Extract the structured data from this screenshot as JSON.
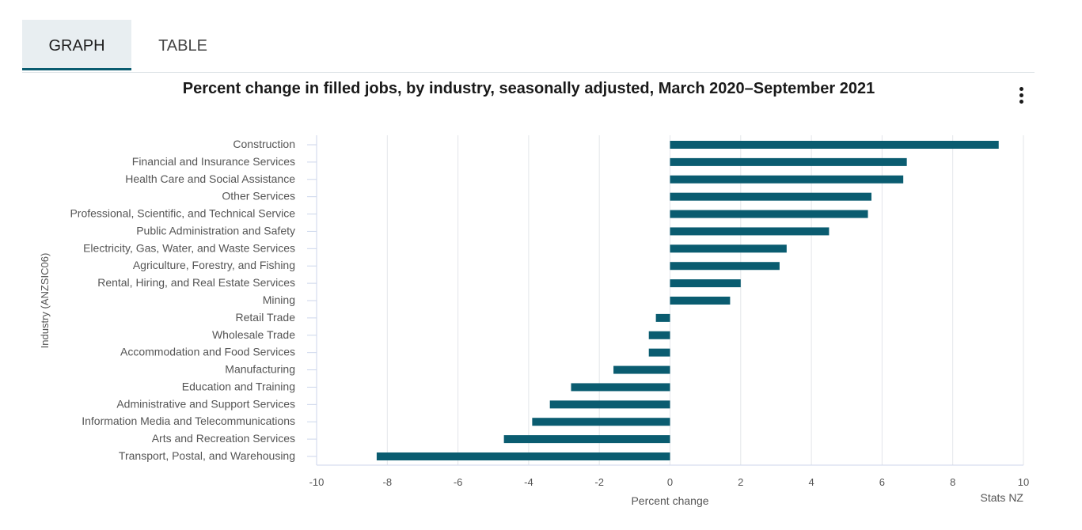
{
  "tabs": {
    "graph_label": "GRAPH",
    "table_label": "TABLE"
  },
  "chart_data": {
    "type": "bar",
    "orientation": "horizontal",
    "title": "Percent change in filled jobs, by industry, seasonally adjusted, March 2020–September 2021",
    "xlabel": "Percent change",
    "ylabel": "Industry (ANZSIC06)",
    "xlim": [
      -10,
      10
    ],
    "xticks": [
      -10,
      -8,
      -6,
      -4,
      -2,
      0,
      2,
      4,
      6,
      8,
      10
    ],
    "grid": true,
    "bar_color": "#0a5c70",
    "categories": [
      "Construction",
      "Financial and Insurance Services",
      "Health Care and Social Assistance",
      "Other Services",
      "Professional, Scientific, and Technical Service",
      "Public Administration and Safety",
      "Electricity, Gas, Water, and Waste Services",
      "Agriculture, Forestry, and Fishing",
      "Rental, Hiring, and Real Estate Services",
      "Mining",
      "Retail Trade",
      "Wholesale Trade",
      "Accommodation and Food Services",
      "Manufacturing",
      "Education and Training",
      "Administrative and Support Services",
      "Information Media and Telecommunications",
      "Arts and Recreation Services",
      "Transport, Postal, and Warehousing"
    ],
    "values": [
      9.3,
      6.7,
      6.6,
      5.7,
      5.6,
      4.5,
      3.3,
      3.1,
      2.0,
      1.7,
      -0.4,
      -0.6,
      -0.6,
      -1.6,
      -2.8,
      -3.4,
      -3.9,
      -4.7,
      -8.3
    ]
  },
  "credit": "Stats NZ"
}
